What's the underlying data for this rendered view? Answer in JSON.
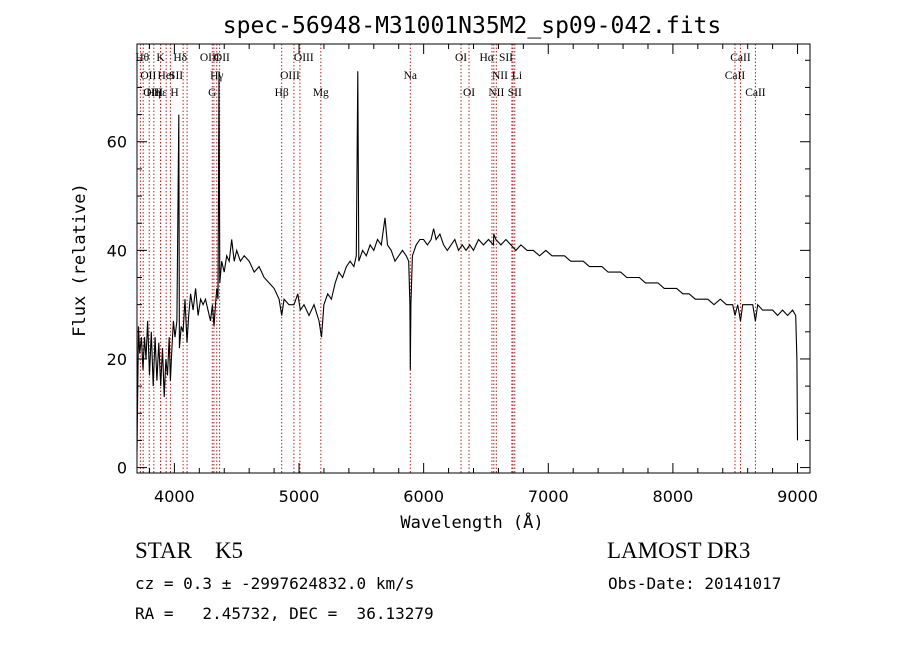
{
  "chart_data": {
    "type": "line",
    "title": "spec-56948-M31001N35M2_sp09-042.fits",
    "xlabel": "Wavelength (Å)",
    "ylabel": "Flux (relative)",
    "xlim": [
      3700,
      9100
    ],
    "ylim": [
      -1,
      78
    ],
    "xticks": [
      4000,
      5000,
      6000,
      7000,
      8000,
      9000
    ],
    "yticks": [
      0,
      20,
      40,
      60
    ],
    "series": [
      {
        "name": "flux",
        "points": [
          [
            3700,
            3
          ],
          [
            3712,
            26
          ],
          [
            3722,
            21
          ],
          [
            3735,
            24
          ],
          [
            3748,
            18
          ],
          [
            3760,
            24
          ],
          [
            3772,
            20
          ],
          [
            3785,
            27
          ],
          [
            3800,
            17
          ],
          [
            3815,
            25
          ],
          [
            3830,
            15
          ],
          [
            3845,
            24
          ],
          [
            3860,
            16
          ],
          [
            3875,
            23
          ],
          [
            3890,
            15
          ],
          [
            3905,
            22
          ],
          [
            3918,
            13
          ],
          [
            3932,
            20
          ],
          [
            3945,
            17
          ],
          [
            3958,
            24
          ],
          [
            3968,
            16
          ],
          [
            3980,
            22
          ],
          [
            3992,
            27
          ],
          [
            4005,
            24
          ],
          [
            4020,
            27
          ],
          [
            4035,
            65
          ],
          [
            4040,
            22
          ],
          [
            4055,
            26
          ],
          [
            4070,
            25
          ],
          [
            4085,
            31
          ],
          [
            4101,
            23
          ],
          [
            4115,
            28
          ],
          [
            4130,
            32
          ],
          [
            4150,
            29
          ],
          [
            4170,
            33
          ],
          [
            4190,
            28
          ],
          [
            4210,
            31
          ],
          [
            4230,
            30
          ],
          [
            4250,
            31
          ],
          [
            4270,
            29
          ],
          [
            4290,
            27
          ],
          [
            4305,
            30
          ],
          [
            4318,
            26
          ],
          [
            4330,
            30
          ],
          [
            4340,
            33
          ],
          [
            4350,
            31
          ],
          [
            4358,
            73
          ],
          [
            4364,
            34
          ],
          [
            4380,
            38
          ],
          [
            4400,
            36
          ],
          [
            4420,
            39
          ],
          [
            4440,
            38
          ],
          [
            4460,
            42
          ],
          [
            4480,
            38
          ],
          [
            4500,
            40
          ],
          [
            4530,
            38
          ],
          [
            4560,
            39
          ],
          [
            4600,
            38
          ],
          [
            4640,
            36
          ],
          [
            4680,
            37
          ],
          [
            4720,
            35
          ],
          [
            4760,
            34
          ],
          [
            4800,
            33
          ],
          [
            4840,
            31
          ],
          [
            4861,
            28
          ],
          [
            4880,
            31
          ],
          [
            4920,
            30
          ],
          [
            4960,
            30
          ],
          [
            4990,
            32
          ],
          [
            5010,
            29
          ],
          [
            5040,
            30
          ],
          [
            5080,
            28
          ],
          [
            5120,
            30
          ],
          [
            5160,
            27
          ],
          [
            5180,
            24
          ],
          [
            5200,
            30
          ],
          [
            5230,
            32
          ],
          [
            5260,
            31
          ],
          [
            5290,
            34
          ],
          [
            5320,
            36
          ],
          [
            5350,
            35
          ],
          [
            5380,
            37
          ],
          [
            5410,
            38
          ],
          [
            5440,
            37
          ],
          [
            5460,
            39
          ],
          [
            5472,
            73
          ],
          [
            5480,
            38
          ],
          [
            5510,
            40
          ],
          [
            5540,
            39
          ],
          [
            5570,
            41
          ],
          [
            5600,
            40
          ],
          [
            5630,
            42
          ],
          [
            5660,
            41
          ],
          [
            5690,
            46
          ],
          [
            5710,
            41
          ],
          [
            5740,
            40
          ],
          [
            5770,
            38
          ],
          [
            5800,
            39
          ],
          [
            5830,
            40
          ],
          [
            5860,
            39
          ],
          [
            5880,
            38
          ],
          [
            5890,
            30
          ],
          [
            5893,
            18
          ],
          [
            5898,
            30
          ],
          [
            5910,
            39
          ],
          [
            5940,
            41
          ],
          [
            5970,
            42
          ],
          [
            6000,
            42
          ],
          [
            6030,
            41
          ],
          [
            6060,
            42
          ],
          [
            6080,
            44
          ],
          [
            6100,
            42
          ],
          [
            6130,
            43
          ],
          [
            6160,
            41
          ],
          [
            6190,
            40
          ],
          [
            6220,
            41
          ],
          [
            6250,
            42
          ],
          [
            6280,
            40
          ],
          [
            6310,
            41
          ],
          [
            6340,
            40
          ],
          [
            6370,
            41
          ],
          [
            6400,
            40
          ],
          [
            6440,
            42
          ],
          [
            6480,
            41
          ],
          [
            6520,
            42
          ],
          [
            6560,
            41
          ],
          [
            6563,
            43
          ],
          [
            6580,
            42
          ],
          [
            6620,
            41
          ],
          [
            6660,
            42
          ],
          [
            6700,
            41
          ],
          [
            6740,
            40
          ],
          [
            6780,
            41
          ],
          [
            6830,
            40
          ],
          [
            6880,
            40
          ],
          [
            6930,
            39
          ],
          [
            6980,
            40
          ],
          [
            7030,
            39
          ],
          [
            7080,
            39
          ],
          [
            7130,
            39
          ],
          [
            7180,
            38
          ],
          [
            7230,
            38
          ],
          [
            7280,
            38
          ],
          [
            7330,
            37
          ],
          [
            7380,
            37
          ],
          [
            7430,
            37
          ],
          [
            7480,
            36
          ],
          [
            7530,
            36
          ],
          [
            7580,
            36
          ],
          [
            7630,
            35
          ],
          [
            7680,
            35
          ],
          [
            7730,
            35
          ],
          [
            7780,
            34
          ],
          [
            7830,
            34
          ],
          [
            7880,
            34
          ],
          [
            7930,
            33
          ],
          [
            7980,
            33
          ],
          [
            8030,
            33
          ],
          [
            8080,
            32
          ],
          [
            8130,
            32
          ],
          [
            8180,
            31
          ],
          [
            8230,
            31
          ],
          [
            8280,
            31
          ],
          [
            8330,
            30
          ],
          [
            8380,
            31
          ],
          [
            8430,
            30
          ],
          [
            8480,
            30
          ],
          [
            8498,
            28
          ],
          [
            8520,
            30
          ],
          [
            8542,
            27
          ],
          [
            8560,
            30
          ],
          [
            8600,
            30
          ],
          [
            8640,
            30
          ],
          [
            8662,
            27
          ],
          [
            8680,
            30
          ],
          [
            8720,
            29
          ],
          [
            8760,
            29
          ],
          [
            8800,
            29
          ],
          [
            8840,
            28
          ],
          [
            8880,
            29
          ],
          [
            8920,
            28
          ],
          [
            8960,
            29
          ],
          [
            8985,
            28
          ],
          [
            8995,
            20
          ],
          [
            9000,
            5
          ]
        ]
      }
    ],
    "lines": [
      {
        "label": "Hθ",
        "x": 3798,
        "row": 0,
        "align": "end"
      },
      {
        "label": "OII",
        "x": 3727,
        "row": 1,
        "align": "start"
      },
      {
        "label": "OIII",
        "x": 3750,
        "row": 2,
        "align": "start"
      },
      {
        "label": "Hε",
        "x": 3835,
        "row": 2,
        "align": "start"
      },
      {
        "label": "K",
        "x": 3889,
        "row": 0,
        "align": "middle"
      },
      {
        "label": "HeI",
        "x": 3934,
        "row": 1,
        "align": "middle"
      },
      {
        "label": "Hη",
        "x": 3890,
        "row": 2,
        "align": "end"
      },
      {
        "label": "H",
        "x": 3968,
        "row": 2,
        "align": "start"
      },
      {
        "label": "SII",
        "x": 4070,
        "row": 1,
        "align": "end"
      },
      {
        "label": "Hδ",
        "x": 4102,
        "row": 0,
        "align": "end"
      },
      {
        "label": "OII",
        "x": 4317,
        "row": 0,
        "align": "start"
      },
      {
        "label": "Hγ",
        "x": 4340,
        "row": 1,
        "align": "middle"
      },
      {
        "label": "G",
        "x": 4304,
        "row": 2,
        "align": "middle"
      },
      {
        "label": "OIII",
        "x": 4363,
        "row": 0,
        "align": "end"
      },
      {
        "label": "OIII",
        "x": 4959,
        "row": 0,
        "align": "start"
      },
      {
        "label": "OIII",
        "x": 5007,
        "row": 1,
        "align": "end"
      },
      {
        "label": "Hβ",
        "x": 4861,
        "row": 2,
        "align": "middle"
      },
      {
        "label": "Mg",
        "x": 5175,
        "row": 2,
        "align": "middle"
      },
      {
        "label": "Na",
        "x": 5893,
        "row": 1,
        "align": "middle"
      },
      {
        "label": "OI",
        "x": 6300,
        "row": 0,
        "align": "middle"
      },
      {
        "label": "OI",
        "x": 6364,
        "row": 2,
        "align": "middle"
      },
      {
        "label": "Hα",
        "x": 6563,
        "row": 0,
        "align": "end"
      },
      {
        "label": "NII",
        "x": 6548,
        "row": 1,
        "align": "start"
      },
      {
        "label": "NII",
        "x": 6583,
        "row": 2,
        "align": "middle"
      },
      {
        "label": "SII",
        "x": 6717,
        "row": 0,
        "align": "end"
      },
      {
        "label": "Li",
        "x": 6708,
        "row": 1,
        "align": "start"
      },
      {
        "label": "SII",
        "x": 6731,
        "row": 2,
        "align": "middle"
      },
      {
        "label": "CaII",
        "x": 8498,
        "row": 1,
        "align": "middle"
      },
      {
        "label": "CaII",
        "x": 8542,
        "row": 0,
        "align": "middle"
      },
      {
        "label": "CaII",
        "x": 8662,
        "row": 2,
        "align": "middle"
      }
    ],
    "grid": false,
    "line_color": "#000000",
    "marker_color": "#b22222"
  },
  "info": {
    "class_line": "STAR    K5",
    "survey": "LAMOST DR3",
    "cz": "cz = 0.3 ± -2997624832.0 km/s",
    "obs_date": "Obs-Date: 20141017",
    "coords": "RA =   2.45732, DEC =  36.13279"
  }
}
